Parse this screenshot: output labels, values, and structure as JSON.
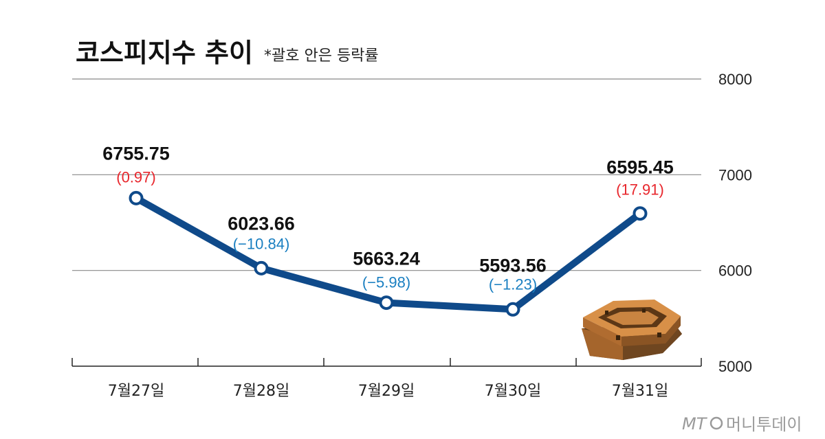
{
  "chart_data": {
    "type": "line",
    "title": "코스피지수 추이",
    "subtitle": "*괄호 안은 등락률",
    "categories": [
      "7월27일",
      "7월28일",
      "7월29일",
      "7월30일",
      "7월31일"
    ],
    "values": [
      6755.75,
      6023.66,
      5663.24,
      5593.56,
      6595.45
    ],
    "value_labels": [
      "6755.75",
      "6023.66",
      "5663.24",
      "5593.56",
      "6595.45"
    ],
    "change_labels": [
      "(0.97)",
      "(−10.84)",
      "(−5.98)",
      "(−1.23)",
      "(17.91)"
    ],
    "change_direction": [
      "up",
      "down",
      "down",
      "down",
      "up"
    ],
    "yticks": [
      "8000",
      "7000",
      "6000",
      "5000"
    ],
    "ylim": [
      5000,
      8000
    ],
    "grid": true,
    "y_axis_side": "right",
    "colors": {
      "line": "#0f4a8a",
      "up": "#e8262c",
      "down": "#1a7fc1",
      "grid": "#888888"
    }
  },
  "credit": {
    "logo": "MT",
    "name": "머니투데이"
  }
}
